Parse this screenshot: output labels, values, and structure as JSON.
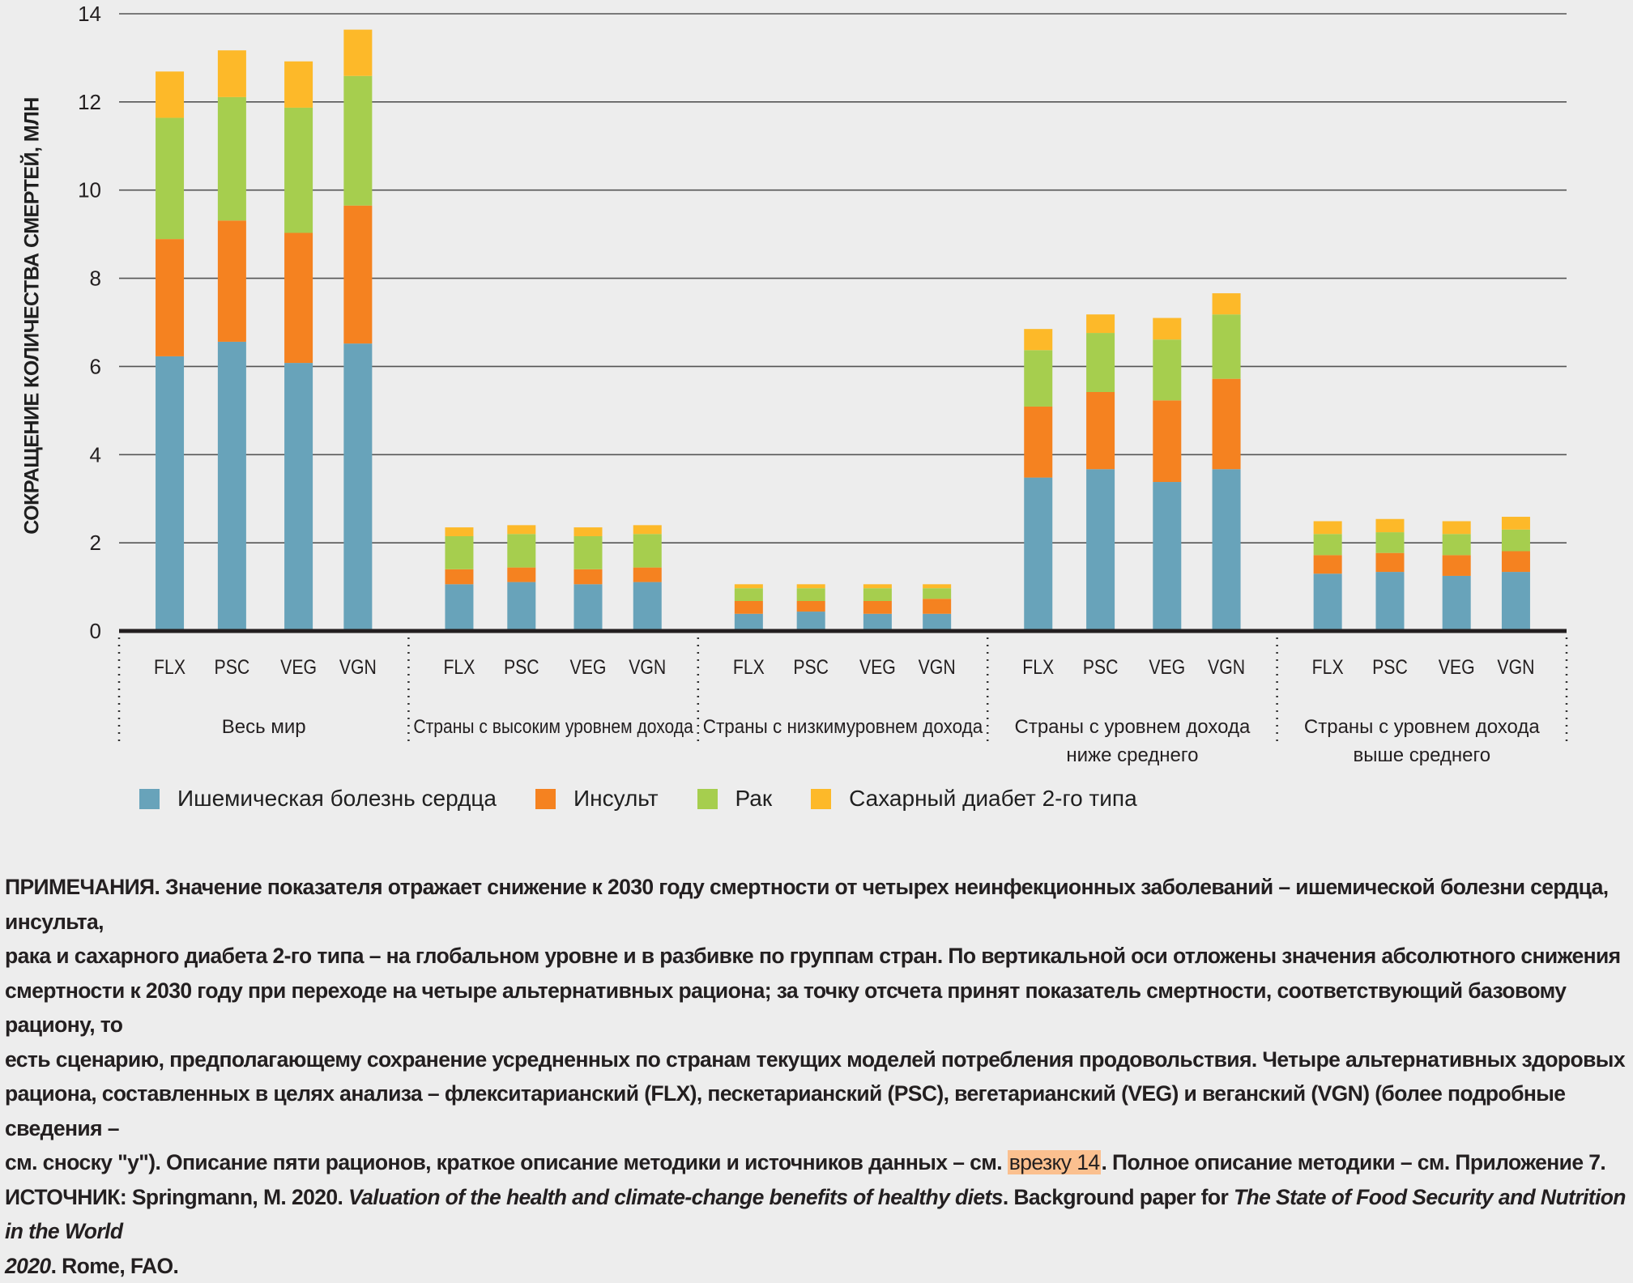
{
  "chart_data": {
    "type": "bar",
    "stacked": true,
    "title": "",
    "ylabel": "СОКРАЩЕНИЕ КОЛИЧЕСТВА СМЕРТЕЙ, МЛН",
    "xlabel": "",
    "ylim": [
      0,
      14
    ],
    "yticks": [
      0,
      2,
      4,
      6,
      8,
      10,
      12,
      14
    ],
    "grid": true,
    "legend_position": "bottom-left",
    "groups": [
      {
        "label": "Весь мир",
        "categories": [
          "FLX",
          "PSC",
          "VEG",
          "VGN"
        ]
      },
      {
        "label": "Страны с высоким уровнем дохода",
        "categories": [
          "FLX",
          "PSC",
          "VEG",
          "VGN"
        ]
      },
      {
        "label": "Страны с низкимуровнем дохода",
        "categories": [
          "FLX",
          "PSC",
          "VEG",
          "VGN"
        ]
      },
      {
        "label": "Страны с уровнем дохода ниже среднего",
        "label_lines": [
          "Страны с уровнем дохода",
          "ниже среднего"
        ],
        "categories": [
          "FLX",
          "PSC",
          "VEG",
          "VGN"
        ]
      },
      {
        "label": "Страны с уровнем дохода выше среднего",
        "label_lines": [
          "Страны с уровнем дохода",
          "выше среднего"
        ],
        "categories": [
          "FLX",
          "PSC",
          "VEG",
          "VGN"
        ]
      }
    ],
    "series": [
      {
        "name": "Ишемическая болезнь сердца",
        "color": "#68a3ba",
        "values": [
          6.23,
          6.56,
          6.08,
          6.52,
          1.06,
          1.11,
          1.06,
          1.11,
          0.39,
          0.44,
          0.39,
          0.39,
          3.48,
          3.67,
          3.38,
          3.67,
          1.3,
          1.34,
          1.25,
          1.34
        ]
      },
      {
        "name": "Инсульт",
        "color": "#f58220",
        "values": [
          2.66,
          2.75,
          2.95,
          3.13,
          0.34,
          0.33,
          0.34,
          0.33,
          0.29,
          0.24,
          0.29,
          0.34,
          1.61,
          1.75,
          1.85,
          2.05,
          0.42,
          0.43,
          0.47,
          0.47
        ]
      },
      {
        "name": "Рак",
        "color": "#a6ce4e",
        "values": [
          2.75,
          2.8,
          2.84,
          2.94,
          0.75,
          0.76,
          0.75,
          0.76,
          0.29,
          0.29,
          0.29,
          0.24,
          1.28,
          1.34,
          1.38,
          1.46,
          0.48,
          0.47,
          0.48,
          0.49
        ]
      },
      {
        "name": "Сахарный диабет 2-го типа",
        "color": "#fdb929",
        "values": [
          1.05,
          1.06,
          1.05,
          1.05,
          0.2,
          0.2,
          0.2,
          0.2,
          0.09,
          0.09,
          0.09,
          0.09,
          0.48,
          0.42,
          0.49,
          0.48,
          0.29,
          0.3,
          0.29,
          0.29
        ]
      }
    ]
  },
  "notes": {
    "line1": "ПРИМЕЧАНИЯ. Значение показателя отражает снижение к 2030 году смертности от четырех неинфекционных заболеваний – ишемической болезни сердца, инсульта,",
    "line2": "рака и сахарного диабета 2-го типа – на глобальном уровне и в разбивке по группам стран. По вертикальной оси отложены значения абсолютного снижения",
    "line3": "смертности к 2030 году при переходе на четыре альтернативных рациона; за точку отсчета принят показатель смертности, соответствующий базовому рациону, то",
    "line4": "есть сценарию, предполагающему сохранение усредненных по странам текущих моделей потребления продовольствия. Четыре альтернативных здоровых",
    "line5": "рациона, составленных в целях анализа – флекситарианский (FLX), пескетарианский (PSC), вегетарианский (VEG) и веганский (VGN) (более подробные сведения –",
    "line6_pre": "см. сноску \"y\"). Описание пяти рационов, краткое описание методики и источников данных – см. ",
    "line6_link": "врезку 14",
    "line6_post": ". Полное описание методики – см. Приложение 7.",
    "source_label": "ИСТОЧНИК: Springmann, M. 2020. ",
    "source_title": "Valuation of the health and climate-change benefits of healthy diets",
    "source_mid": ". Background paper for ",
    "source_report": "The State of Food Security and Nutrition in the World",
    "source_year": "2020",
    "source_end": ". Rome, FAO."
  }
}
